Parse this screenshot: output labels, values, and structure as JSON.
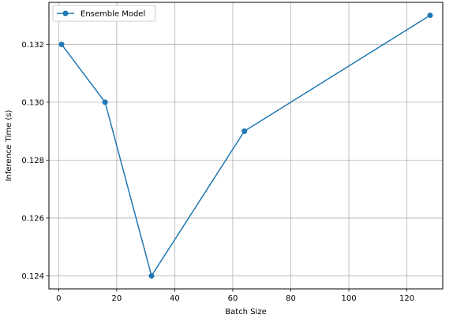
{
  "chart_data": {
    "type": "line",
    "title": "",
    "xlabel": "Batch Size",
    "ylabel": "Inference Time (s)",
    "xlim": [
      -3.35,
      132.35
    ],
    "ylim": [
      0.12355,
      0.13345
    ],
    "xticks": [
      0,
      20,
      40,
      60,
      80,
      100,
      120
    ],
    "xtick_labels": [
      "0",
      "20",
      "40",
      "60",
      "80",
      "100",
      "120"
    ],
    "yticks": [
      0.124,
      0.126,
      0.128,
      0.13,
      0.132
    ],
    "ytick_labels": [
      "0.124",
      "0.126",
      "0.128",
      "0.130",
      "0.132"
    ],
    "grid": true,
    "legend_position": "top-left",
    "series": [
      {
        "name": "Ensemble Model",
        "color": "#1f77b4",
        "marker": "circle",
        "x": [
          1,
          16,
          32,
          64,
          128
        ],
        "y": [
          0.132,
          0.13,
          0.124,
          0.129,
          0.133
        ]
      }
    ]
  }
}
